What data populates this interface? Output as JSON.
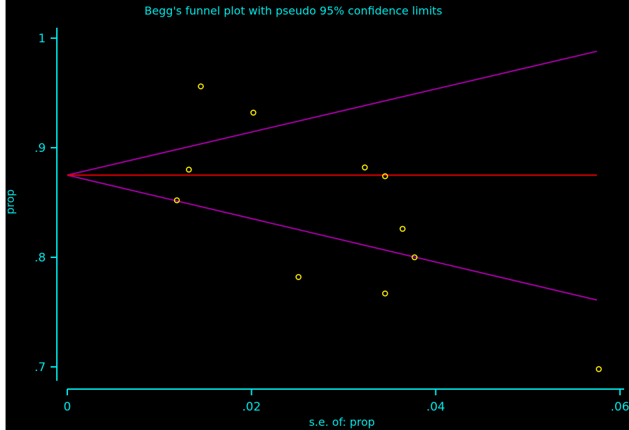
{
  "chart_data": {
    "type": "scatter",
    "title": "Begg's funnel plot with pseudo 95% confidence limits",
    "xlabel": "s.e. of: prop",
    "ylabel": "prop",
    "xlim": [
      0,
      0.06
    ],
    "ylim": [
      0.69,
      1.01
    ],
    "x_ticks": [
      {
        "value": 0,
        "label": "0"
      },
      {
        "value": 0.02,
        "label": ".02"
      },
      {
        "value": 0.04,
        "label": ".04"
      },
      {
        "value": 0.06,
        "label": ".06"
      }
    ],
    "y_ticks": [
      {
        "value": 0.7,
        "label": ".7"
      },
      {
        "value": 0.8,
        "label": ".8"
      },
      {
        "value": 0.9,
        "label": ".9"
      },
      {
        "value": 1.0,
        "label": "1"
      }
    ],
    "grid": false,
    "pooled_estimate": 0.875,
    "confidence_limits": {
      "upper": [
        [
          0,
          0.875
        ],
        [
          0.0575,
          0.988
        ]
      ],
      "lower": [
        [
          0,
          0.875
        ],
        [
          0.0575,
          0.761
        ]
      ]
    },
    "points": [
      {
        "x": 0.0145,
        "y": 0.956
      },
      {
        "x": 0.0202,
        "y": 0.932
      },
      {
        "x": 0.0132,
        "y": 0.88
      },
      {
        "x": 0.0119,
        "y": 0.852
      },
      {
        "x": 0.0323,
        "y": 0.882
      },
      {
        "x": 0.0345,
        "y": 0.874
      },
      {
        "x": 0.0364,
        "y": 0.826
      },
      {
        "x": 0.0377,
        "y": 0.8
      },
      {
        "x": 0.0251,
        "y": 0.782
      },
      {
        "x": 0.0345,
        "y": 0.767
      },
      {
        "x": 0.0577,
        "y": 0.698
      }
    ],
    "colors": {
      "background": "#000000",
      "axis": "#00e8e8",
      "text": "#00e8e8",
      "points": "#ffee00",
      "pooled_line": "#e00000",
      "limits": "#a000a0"
    }
  }
}
